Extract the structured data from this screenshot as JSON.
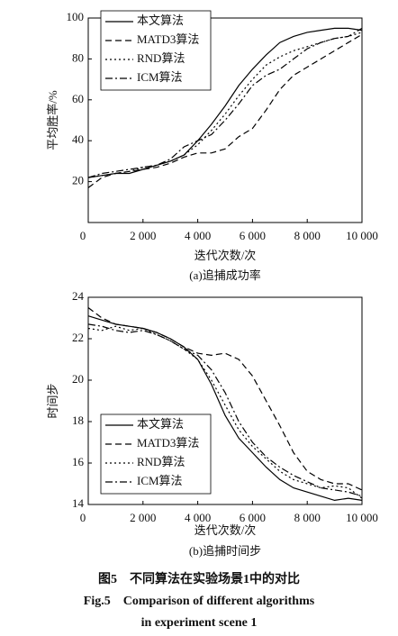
{
  "chart_data": [
    {
      "type": "line",
      "y_label": "平均胜率/%",
      "x_label": "迭代次数/次",
      "subtitle": "(a)追捕成功率",
      "legend": "upper left",
      "xlim": [
        0,
        10000
      ],
      "ylim": [
        0,
        100
      ],
      "xticks": [
        0,
        {
          "value": 2000,
          "label": "2 000"
        },
        {
          "value": 4000,
          "label": "4 000"
        },
        {
          "value": 6000,
          "label": "6 000"
        },
        {
          "value": 8000,
          "label": "8 000"
        },
        {
          "value": 10000,
          "label": "10 000"
        }
      ],
      "yticks": [
        20,
        40,
        60,
        80,
        100
      ],
      "x": [
        0,
        500,
        1000,
        1500,
        2000,
        2500,
        3000,
        3500,
        4000,
        4500,
        5000,
        5500,
        6000,
        6500,
        7000,
        7500,
        8000,
        8500,
        9000,
        9500,
        10000
      ],
      "series": [
        {
          "name": "本文算法",
          "color": "#000000",
          "style": "solid",
          "values": [
            22,
            23,
            24,
            24,
            26,
            28,
            30,
            33,
            40,
            48,
            57,
            67,
            75,
            82,
            88,
            91,
            93,
            94,
            95,
            95,
            94
          ]
        },
        {
          "name": "MATD3算法",
          "color": "#000000",
          "style": "dashed",
          "values": [
            17,
            22,
            24,
            25,
            26,
            27,
            29,
            32,
            34,
            34,
            36,
            42,
            46,
            55,
            65,
            72,
            76,
            80,
            84,
            88,
            92
          ]
        },
        {
          "name": "RND算法",
          "color": "#000000",
          "style": "dotted",
          "values": [
            22,
            23,
            24,
            25,
            27,
            28,
            30,
            33,
            38,
            45,
            53,
            62,
            70,
            77,
            81,
            84,
            86,
            88,
            90,
            91,
            93
          ]
        },
        {
          "name": "ICM算法",
          "color": "#000000",
          "style": "dashdot",
          "values": [
            22,
            24,
            25,
            26,
            27,
            28,
            31,
            37,
            40,
            43,
            50,
            58,
            67,
            72,
            75,
            80,
            85,
            88,
            90,
            91,
            95
          ]
        }
      ]
    },
    {
      "type": "line",
      "y_label": "时间步",
      "x_label": "迭代次数/次",
      "subtitle": "(b)追捕时间步",
      "legend": "lower left",
      "xlim": [
        0,
        10000
      ],
      "ylim": [
        14,
        24
      ],
      "xticks": [
        0,
        {
          "value": 2000,
          "label": "2 000"
        },
        {
          "value": 4000,
          "label": "4 000"
        },
        {
          "value": 6000,
          "label": "6 000"
        },
        {
          "value": 8000,
          "label": "8 000"
        },
        {
          "value": 10000,
          "label": "10 000"
        }
      ],
      "yticks": [
        14,
        16,
        18,
        20,
        22,
        24
      ],
      "x": [
        0,
        500,
        1000,
        1500,
        2000,
        2500,
        3000,
        3500,
        4000,
        4500,
        5000,
        5500,
        6000,
        6500,
        7000,
        7500,
        8000,
        8500,
        9000,
        9500,
        10000
      ],
      "series": [
        {
          "name": "本文算法",
          "color": "#000000",
          "style": "solid",
          "values": [
            23.1,
            22.9,
            22.7,
            22.6,
            22.5,
            22.3,
            22.0,
            21.6,
            21.0,
            19.8,
            18.3,
            17.2,
            16.5,
            15.8,
            15.2,
            14.8,
            14.6,
            14.4,
            14.2,
            14.3,
            14.2
          ]
        },
        {
          "name": "MATD3算法",
          "color": "#000000",
          "style": "dashed",
          "values": [
            23.5,
            23.0,
            22.7,
            22.6,
            22.5,
            22.3,
            22.0,
            21.6,
            21.3,
            21.2,
            21.3,
            21.0,
            20.2,
            19.0,
            17.8,
            16.5,
            15.6,
            15.2,
            15.0,
            15.0,
            14.7
          ]
        },
        {
          "name": "RND算法",
          "color": "#000000",
          "style": "dotted",
          "values": [
            22.5,
            22.4,
            22.6,
            22.4,
            22.5,
            22.2,
            21.9,
            21.5,
            21.0,
            20.0,
            18.8,
            17.6,
            16.8,
            16.2,
            15.6,
            15.2,
            15.0,
            14.8,
            14.9,
            14.8,
            14.3
          ]
        },
        {
          "name": "ICM算法",
          "color": "#000000",
          "style": "dashdot",
          "values": [
            22.7,
            22.6,
            22.4,
            22.3,
            22.4,
            22.2,
            21.9,
            21.5,
            21.2,
            20.5,
            19.4,
            18.0,
            17.0,
            16.3,
            15.8,
            15.4,
            15.1,
            14.8,
            14.7,
            14.6,
            14.4
          ]
        }
      ]
    }
  ],
  "caption": {
    "cn": "图5　不同算法在实验场景1中的对比",
    "en_line1": "Fig.5　Comparison of different algorithms",
    "en_line2": "in experiment scene 1"
  }
}
